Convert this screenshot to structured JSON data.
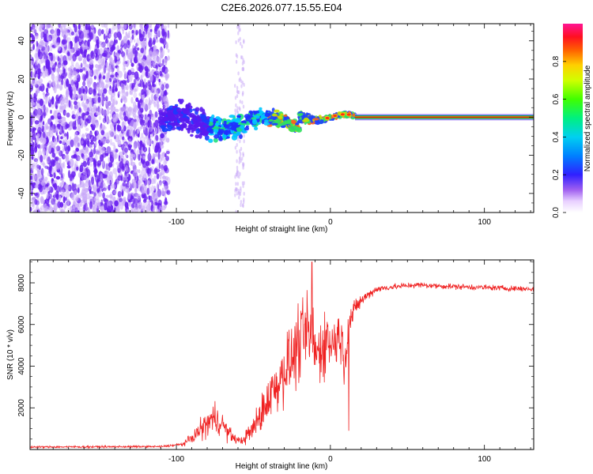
{
  "title": "C2E6.2026.077.15.55.E04",
  "colors": {
    "axis": "#000000",
    "snr_line": "#ef2020",
    "scatter": "#6a20f0",
    "scatter_light": "#c8a8f8",
    "track_core": "#d01010",
    "track_mid": "#20d020",
    "track_edge": "#2040f0"
  },
  "chart_data": [
    {
      "type": "heatmap",
      "name": "spectrogram",
      "title": "C2E6.2026.077.15.55.E04",
      "xlabel": "Height of straight line (km)",
      "ylabel": "Frequency (Hz)",
      "xlim": [
        -195,
        132
      ],
      "ylim": [
        -50,
        49
      ],
      "xticks": [
        -100,
        0,
        100
      ],
      "yticks": [
        -40,
        -20,
        0,
        20,
        40
      ],
      "colorbar": {
        "label": "Normalized spectral amplitude",
        "range": [
          0,
          1
        ],
        "ticks": [
          "0.0",
          "0.2",
          "0.4",
          "0.6",
          "0.8"
        ],
        "tick_values": [
          0.0,
          0.2,
          0.4,
          0.6,
          0.8
        ],
        "colormap": [
          "#ffffff",
          "#d0a0ff",
          "#8a2be2",
          "#1a1aff",
          "#00b4ff",
          "#00e0a0",
          "#00ff00",
          "#c8ff00",
          "#ffff00",
          "#ff9900",
          "#ff2000",
          "#ff0066",
          "#ff1493"
        ]
      },
      "features": {
        "scatter_region_km": [
          -195,
          -105
        ],
        "track_region_km": [
          -110,
          132
        ],
        "steady_tone_start_km": 16,
        "steady_tone_freq_hz": 0
      }
    },
    {
      "type": "line",
      "name": "snr",
      "xlabel": "Height of straight line (km)",
      "ylabel": "SNR (10 * v/v)",
      "xlim": [
        -195,
        132
      ],
      "ylim": [
        0,
        9100
      ],
      "xticks": [
        -100,
        0,
        100
      ],
      "yticks": [
        2000,
        4000,
        6000,
        8000
      ],
      "series": [
        {
          "name": "SNR",
          "x": [
            -195,
            -150,
            -110,
            -96,
            -90,
            -85,
            -82,
            -78,
            -74,
            -70,
            -66,
            -62,
            -58,
            -55,
            -50,
            -45,
            -42,
            -38,
            -34,
            -30,
            -26,
            -22,
            -18,
            -15,
            -12,
            -10,
            -8,
            -5,
            -2,
            0,
            3,
            6,
            9,
            12,
            14,
            18,
            24,
            30,
            40,
            55,
            70,
            90,
            110,
            132
          ],
          "base": [
            120,
            130,
            140,
            250,
            550,
            900,
            1100,
            1400,
            1500,
            1200,
            800,
            500,
            400,
            600,
            1000,
            1700,
            2200,
            2800,
            3200,
            3800,
            4200,
            4800,
            5400,
            5600,
            5200,
            4800,
            4600,
            5000,
            5400,
            5000,
            5200,
            5600,
            4400,
            6000,
            6400,
            7000,
            7400,
            7700,
            7800,
            7900,
            7850,
            7800,
            7750,
            7700
          ],
          "noise": [
            70,
            70,
            70,
            120,
            350,
            700,
            900,
            1100,
            1100,
            900,
            600,
            300,
            250,
            500,
            900,
            1300,
            1500,
            1800,
            2000,
            2200,
            2500,
            2600,
            2500,
            2800,
            3000,
            2800,
            2400,
            2300,
            2200,
            1900,
            1800,
            1600,
            2600,
            1200,
            900,
            500,
            350,
            250,
            220,
            200,
            200,
            200,
            200,
            200
          ]
        }
      ],
      "peak": {
        "x": -12,
        "y": 9000
      },
      "dip": {
        "x": 12,
        "y": 900
      }
    }
  ]
}
